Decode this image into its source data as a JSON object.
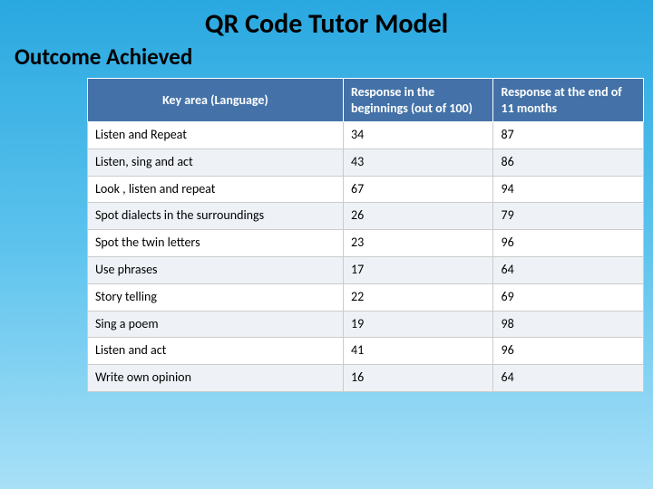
{
  "title": "QR Code Tutor Model",
  "subtitle": "Outcome Achieved",
  "table": {
    "columns": [
      "Key area  (Language)",
      "Response in the beginnings (out of 100)",
      "Response at the end of 11 months"
    ],
    "rows": [
      [
        "Listen and Repeat",
        "34",
        "87"
      ],
      [
        "Listen, sing and act",
        "43",
        "86"
      ],
      [
        "Look , listen and repeat",
        "67",
        "94"
      ],
      [
        "Spot dialects in the surroundings",
        "26",
        "79"
      ],
      [
        "Spot the twin letters",
        "23",
        "96"
      ],
      [
        "Use phrases",
        "17",
        "64"
      ],
      [
        "Story telling",
        "22",
        "69"
      ],
      [
        "Sing a poem",
        "19",
        "98"
      ],
      [
        "Listen and act",
        "41",
        "96"
      ],
      [
        "Write own opinion",
        "16",
        "64"
      ]
    ]
  },
  "style": {
    "background_gradient": [
      "#29a8e0",
      "#5dc3ed",
      "#a8e0f7"
    ],
    "header_bg": "#4472a8",
    "header_text": "#ffffff",
    "row_bg": "#ffffff",
    "row_alt_bg": "#eef2f7",
    "border_color": "#cccccc",
    "title_fontsize": 30,
    "subtitle_fontsize": 25,
    "cell_fontsize": 14
  }
}
